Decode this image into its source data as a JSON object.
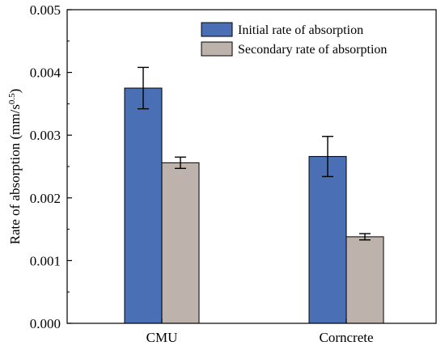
{
  "chart_data": {
    "type": "bar",
    "ylabel_main": "Rate of absorption (mm/s",
    "ylabel_sup": "0.5",
    "ylabel_close": ")",
    "xlabel": "",
    "ylim": [
      0,
      0.005
    ],
    "yticks": [
      "0.000",
      "0.001",
      "0.002",
      "0.003",
      "0.004",
      "0.005"
    ],
    "ytick_values": [
      0,
      0.001,
      0.002,
      0.003,
      0.004,
      0.005
    ],
    "categories": [
      "CMU",
      "Corncrete"
    ],
    "series": [
      {
        "name": "Initial rate of absorption",
        "color": "#4a6fb5",
        "values": [
          0.00375,
          0.00266
        ],
        "errors": [
          0.00033,
          0.00032
        ]
      },
      {
        "name": "Secondary rate of absorption",
        "color": "#bdb2ac",
        "values": [
          0.00256,
          0.00138
        ],
        "errors": [
          9e-05,
          5e-05
        ]
      }
    ],
    "legend_position": "top-right",
    "grid": false
  }
}
